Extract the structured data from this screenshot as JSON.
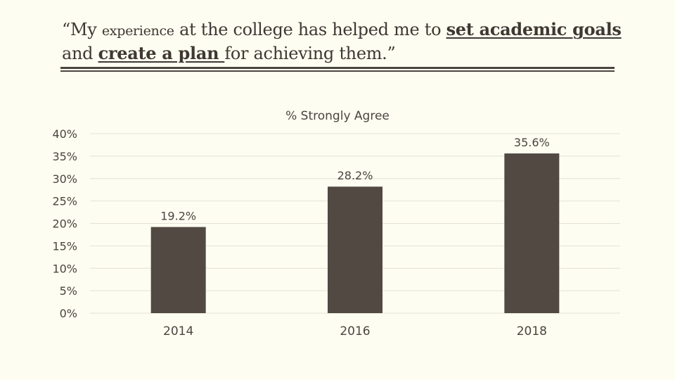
{
  "slide": {
    "title_quote_open": "“My ",
    "title_word_experience": "experience",
    "title_part1": " at the college has helped me to ",
    "title_link1": "set academic goals ",
    "title_part2": "and ",
    "title_link2": "create a plan ",
    "title_part3": "for achieving them.”"
  },
  "chart_data": {
    "type": "bar",
    "title": "% Strongly Agree",
    "categories": [
      "2014",
      "2016",
      "2018"
    ],
    "values": [
      19.2,
      28.2,
      35.6
    ],
    "data_labels": [
      "19.2%",
      "28.2%",
      "35.6%"
    ],
    "ylim": [
      0,
      40
    ],
    "yticks": [
      "0%",
      "5%",
      "10%",
      "15%",
      "20%",
      "25%",
      "30%",
      "35%",
      "40%"
    ],
    "ytick_values": [
      0,
      5,
      10,
      15,
      20,
      25,
      30,
      35,
      40
    ],
    "xlabel": "",
    "ylabel": "",
    "grid": true,
    "bar_color": "#524943",
    "grid_color": "#e4e2d6"
  }
}
